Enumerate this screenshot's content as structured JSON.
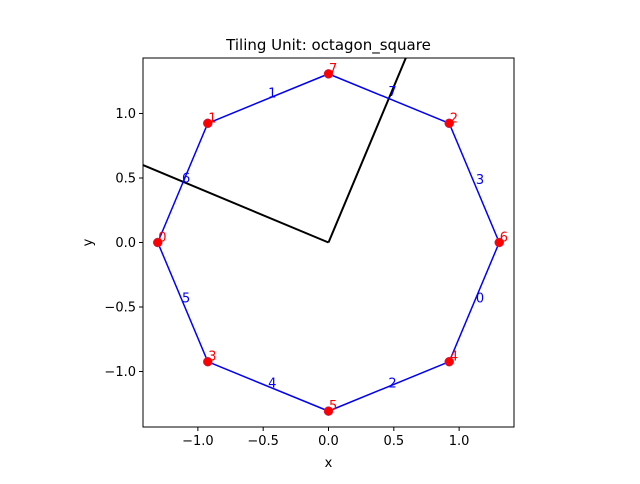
{
  "chart_data": {
    "type": "line",
    "title": "Tiling Unit: octagon_square",
    "xlabel": "x",
    "ylabel": "y",
    "xlim": [
      -1.42,
      1.42
    ],
    "ylim": [
      -1.43,
      1.43
    ],
    "xticks": [
      -1.0,
      -0.5,
      0.0,
      0.5,
      1.0
    ],
    "xtick_labels": [
      "−1.0",
      "−0.5",
      "0.0",
      "0.5",
      "1.0"
    ],
    "yticks": [
      -1.0,
      -0.5,
      0.0,
      0.5,
      1.0
    ],
    "ytick_labels": [
      "−1.0",
      "−0.5",
      "0.0",
      "0.5",
      "1.0"
    ],
    "grid": false,
    "colors": {
      "polygon": "#0000ff",
      "vertex": "#ff0000",
      "vector": "#000000",
      "edge_label": "#0000ff",
      "vertex_label": "#ff0000"
    },
    "polygon": {
      "vertices": [
        {
          "label": "7",
          "x": 0.0,
          "y": 1.307
        },
        {
          "label": "2",
          "x": 0.924,
          "y": 0.924
        },
        {
          "label": "6",
          "x": 1.307,
          "y": 0.0
        },
        {
          "label": "4",
          "x": 0.924,
          "y": -0.924
        },
        {
          "label": "5",
          "x": 0.0,
          "y": -1.307
        },
        {
          "label": "3",
          "x": -0.924,
          "y": -0.924
        },
        {
          "label": "0",
          "x": -1.307,
          "y": 0.0
        },
        {
          "label": "1",
          "x": -0.924,
          "y": 0.924
        }
      ],
      "edge_labels": [
        {
          "label": "7",
          "x": 0.49,
          "y": 1.17
        },
        {
          "label": "3",
          "x": 1.16,
          "y": 0.49
        },
        {
          "label": "0",
          "x": 1.16,
          "y": -0.43
        },
        {
          "label": "2",
          "x": 0.49,
          "y": -1.09
        },
        {
          "label": "4",
          "x": -0.43,
          "y": -1.09
        },
        {
          "label": "5",
          "x": -1.09,
          "y": -0.43
        },
        {
          "label": "6",
          "x": -1.09,
          "y": 0.5
        },
        {
          "label": "1",
          "x": -0.43,
          "y": 1.16
        }
      ]
    },
    "vectors": [
      {
        "x0": 0.0,
        "y0": 0.0,
        "x1": 0.6,
        "y1": 1.45
      },
      {
        "x0": 0.0,
        "y0": 0.0,
        "x1": -1.42,
        "y1": 0.6
      }
    ]
  }
}
